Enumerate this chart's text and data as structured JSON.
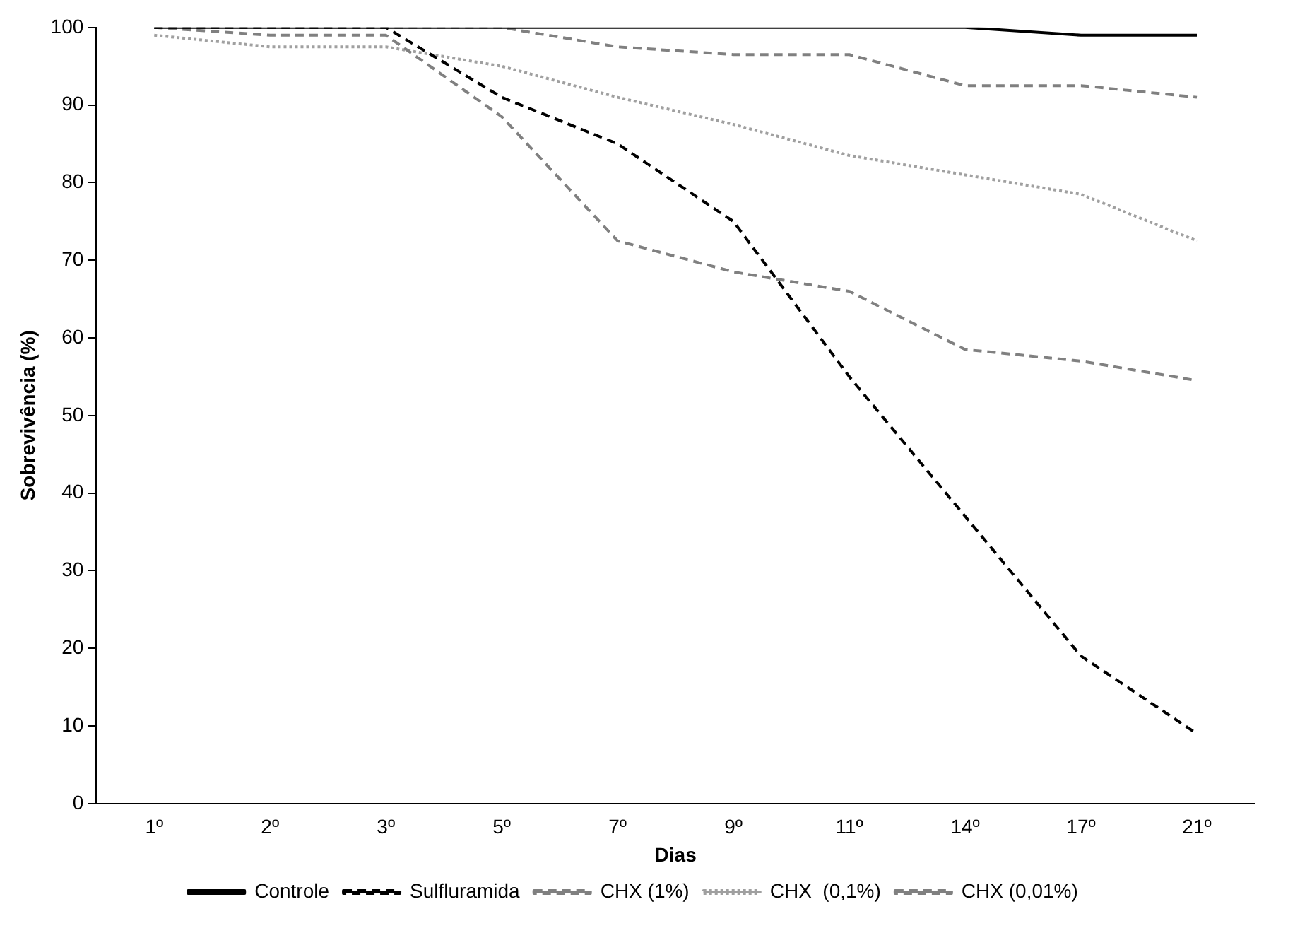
{
  "chart_data": {
    "type": "line",
    "xlabel": "Dias",
    "ylabel": "Sobrevivência (%)",
    "categories": [
      "1º",
      "2º",
      "3º",
      "5º",
      "7º",
      "9º",
      "11º",
      "14º",
      "17º",
      "21º"
    ],
    "series": [
      {
        "name": "Controle",
        "color": "#000000",
        "line_style": "solid",
        "values": [
          100,
          100,
          100,
          100,
          100,
          100,
          100,
          100,
          99,
          99
        ]
      },
      {
        "name": "Sulfluramida",
        "color": "#000000",
        "line_style": "dashed",
        "values": [
          100,
          100,
          100,
          91,
          85,
          75,
          55,
          37,
          19,
          9
        ]
      },
      {
        "name": "CHX (1%)",
        "color": "#808080",
        "line_style": "dashed",
        "values": [
          100,
          99,
          99,
          88.5,
          72.5,
          68.5,
          66,
          58.5,
          57,
          54.5
        ]
      },
      {
        "name": "CHX  (0,1%)",
        "color": "#a0a0a0",
        "line_style": "dotted",
        "values": [
          99,
          97.5,
          97.5,
          95,
          91,
          87.5,
          83.5,
          81,
          78.5,
          72.5
        ]
      },
      {
        "name": "CHX (0,01%)",
        "color": "#808080",
        "line_style": "dashed",
        "values": [
          100,
          100,
          100,
          100,
          97.5,
          96.5,
          96.5,
          92.5,
          92.5,
          91
        ]
      }
    ],
    "ylim": [
      0,
      100
    ],
    "yticks": [
      0,
      10,
      20,
      30,
      40,
      50,
      60,
      70,
      80,
      90,
      100
    ],
    "grid": false,
    "legend": "bottom",
    "marker": "none"
  }
}
